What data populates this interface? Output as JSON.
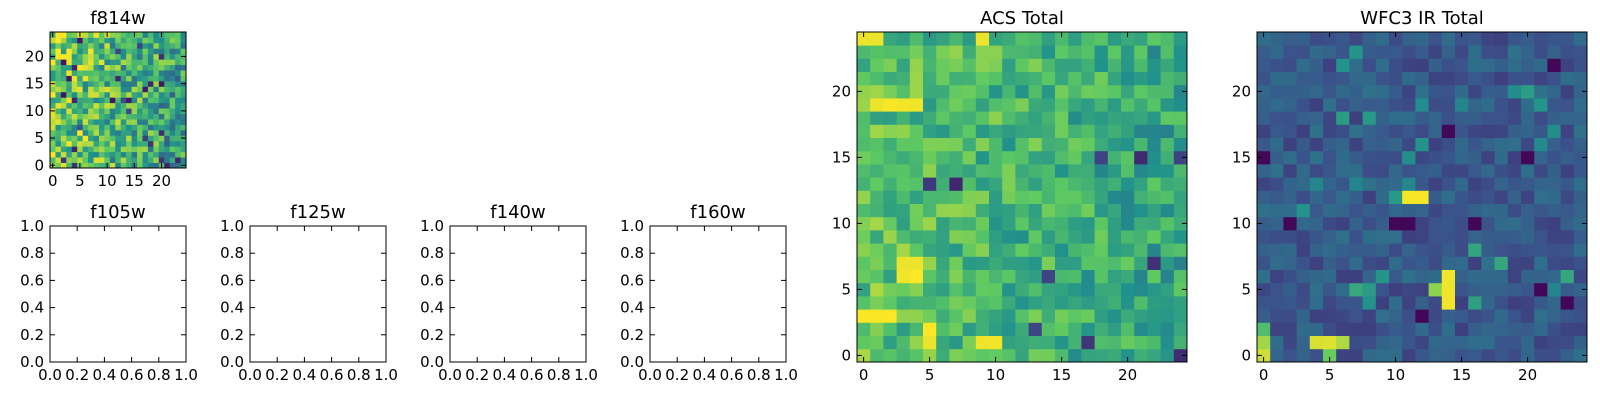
{
  "figure": {
    "colormap": "viridis",
    "colormap_stops": [
      "#440154",
      "#3b528b",
      "#21918c",
      "#5ec962",
      "#fde725"
    ]
  },
  "chart_data": [
    {
      "type": "heatmap",
      "title": "f814w",
      "image_size": 25,
      "xticks": [
        "0",
        "5",
        "10",
        "15",
        "20"
      ],
      "yticks": [
        "0",
        "5",
        "10",
        "15",
        "20"
      ],
      "xlim": [
        -0.5,
        24.5
      ],
      "ylim": [
        -0.5,
        24.5
      ],
      "note": "noise-like field, brighter toward the left"
    },
    {
      "type": "heatmap",
      "title": "f105w",
      "empty": true,
      "xticks": [
        "0.0",
        "0.2",
        "0.4",
        "0.6",
        "0.8",
        "1.0"
      ],
      "yticks": [
        "0.0",
        "0.2",
        "0.4",
        "0.6",
        "0.8",
        "1.0"
      ],
      "xlim": [
        0,
        1
      ],
      "ylim": [
        0,
        1
      ]
    },
    {
      "type": "heatmap",
      "title": "f125w",
      "empty": true,
      "xticks": [
        "0.0",
        "0.2",
        "0.4",
        "0.6",
        "0.8",
        "1.0"
      ],
      "yticks": [
        "0.0",
        "0.2",
        "0.4",
        "0.6",
        "0.8",
        "1.0"
      ],
      "xlim": [
        0,
        1
      ],
      "ylim": [
        0,
        1
      ]
    },
    {
      "type": "heatmap",
      "title": "f140w",
      "empty": true,
      "xticks": [
        "0.0",
        "0.2",
        "0.4",
        "0.6",
        "0.8",
        "1.0"
      ],
      "yticks": [
        "0.0",
        "0.2",
        "0.4",
        "0.6",
        "0.8",
        "1.0"
      ],
      "xlim": [
        0,
        1
      ],
      "ylim": [
        0,
        1
      ]
    },
    {
      "type": "heatmap",
      "title": "f160w",
      "empty": true,
      "xticks": [
        "0.0",
        "0.2",
        "0.4",
        "0.6",
        "0.8",
        "1.0"
      ],
      "yticks": [
        "0.0",
        "0.2",
        "0.4",
        "0.6",
        "0.8",
        "1.0"
      ],
      "xlim": [
        0,
        1
      ],
      "ylim": [
        0,
        1
      ]
    },
    {
      "type": "heatmap",
      "title": "ACS Total",
      "image_size": 25,
      "xticks": [
        "0",
        "5",
        "10",
        "15",
        "20"
      ],
      "yticks": [
        "0",
        "5",
        "10",
        "15",
        "20"
      ],
      "xlim": [
        -0.5,
        24.5
      ],
      "ylim": [
        -0.5,
        24.5
      ],
      "bright_pixels": [
        {
          "x": 0,
          "y": 24
        },
        {
          "x": 1,
          "y": 24
        },
        {
          "x": 9,
          "y": 24
        },
        {
          "x": 1,
          "y": 19
        },
        {
          "x": 2,
          "y": 19
        },
        {
          "x": 3,
          "y": 19
        },
        {
          "x": 4,
          "y": 19
        },
        {
          "x": 3,
          "y": 7
        },
        {
          "x": 4,
          "y": 7
        },
        {
          "x": 3,
          "y": 6
        },
        {
          "x": 4,
          "y": 6
        },
        {
          "x": 0,
          "y": 3
        },
        {
          "x": 1,
          "y": 3
        },
        {
          "x": 2,
          "y": 3
        },
        {
          "x": 5,
          "y": 1
        },
        {
          "x": 5,
          "y": 2
        },
        {
          "x": 9,
          "y": 1
        },
        {
          "x": 10,
          "y": 1
        }
      ],
      "dark_pixels": [
        {
          "x": 18,
          "y": 15
        },
        {
          "x": 21,
          "y": 15
        },
        {
          "x": 24,
          "y": 15
        },
        {
          "x": 14,
          "y": 6
        },
        {
          "x": 22,
          "y": 7
        },
        {
          "x": 17,
          "y": 1
        },
        {
          "x": 24,
          "y": 0
        },
        {
          "x": 5,
          "y": 13
        },
        {
          "x": 7,
          "y": 13
        },
        {
          "x": 13,
          "y": 2
        }
      ]
    },
    {
      "type": "heatmap",
      "title": "WFC3 IR Total",
      "image_size": 25,
      "xticks": [
        "0",
        "5",
        "10",
        "15",
        "20"
      ],
      "yticks": [
        "0",
        "5",
        "10",
        "15",
        "20"
      ],
      "xlim": [
        -0.5,
        24.5
      ],
      "ylim": [
        -0.5,
        24.5
      ],
      "bright_pixels": [
        {
          "x": 11,
          "y": 12
        },
        {
          "x": 12,
          "y": 12
        },
        {
          "x": 14,
          "y": 5
        },
        {
          "x": 14,
          "y": 6
        },
        {
          "x": 14,
          "y": 4
        },
        {
          "x": 5,
          "y": 0
        },
        {
          "x": 5,
          "y": 1
        },
        {
          "x": 0,
          "y": 0
        },
        {
          "x": 0,
          "y": 1
        },
        {
          "x": 0,
          "y": 2
        },
        {
          "x": 13,
          "y": 5
        },
        {
          "x": 4,
          "y": 1
        },
        {
          "x": 6,
          "y": 1
        }
      ],
      "dark_pixels": [
        {
          "x": 0,
          "y": 15
        },
        {
          "x": 10,
          "y": 10
        },
        {
          "x": 11,
          "y": 10
        },
        {
          "x": 2,
          "y": 10
        },
        {
          "x": 16,
          "y": 10
        },
        {
          "x": 21,
          "y": 5
        },
        {
          "x": 23,
          "y": 4
        },
        {
          "x": 20,
          "y": 15
        },
        {
          "x": 12,
          "y": 3
        },
        {
          "x": 14,
          "y": 17
        },
        {
          "x": 22,
          "y": 22
        }
      ]
    }
  ]
}
